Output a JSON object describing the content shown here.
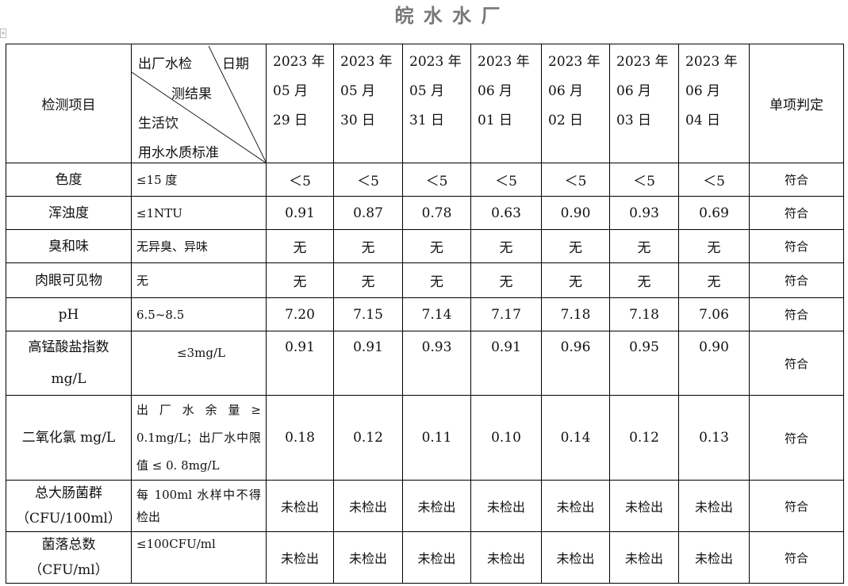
{
  "title": "皖 水 水 厂",
  "header": {
    "item_label": "检测项目",
    "diag_top_left": "出厂水检",
    "diag_top_right": "日期",
    "diag_mid": "测结果",
    "diag_bottom1": "生活饮",
    "diag_bottom2": "用水水质标准",
    "dates": [
      [
        "2023 年",
        "05 月",
        "29 日"
      ],
      [
        "2023 年",
        "05 月",
        "30 日"
      ],
      [
        "2023 年",
        "05 月",
        "31 日"
      ],
      [
        "2023 年",
        "06 月",
        "01 日"
      ],
      [
        "2023 年",
        "06 月",
        "02 日"
      ],
      [
        "2023 年",
        "06 月",
        "03 日"
      ],
      [
        "2023 年",
        "06 月",
        "04 日"
      ]
    ],
    "verdict_label": "单项判定"
  },
  "rows": [
    {
      "item": "色度",
      "standard": "≤15 度",
      "values": [
        "＜5",
        "＜5",
        "＜5",
        "＜5",
        "＜5",
        "＜5",
        "＜5"
      ],
      "verdict": "符合"
    },
    {
      "item": "浑浊度",
      "standard": "≤1NTU",
      "values": [
        "0.91",
        "0.87",
        "0.78",
        "0.63",
        "0.90",
        "0.93",
        "0.69"
      ],
      "verdict": "符合"
    },
    {
      "item": "臭和味",
      "standard": "无异臭、异味",
      "values": [
        "无",
        "无",
        "无",
        "无",
        "无",
        "无",
        "无"
      ],
      "verdict": "符合"
    },
    {
      "item": "肉眼可见物",
      "standard": "无",
      "values": [
        "无",
        "无",
        "无",
        "无",
        "无",
        "无",
        "无"
      ],
      "verdict": "符合"
    },
    {
      "item": "pH",
      "standard": "6.5~8.5",
      "values": [
        "7.20",
        "7.15",
        "7.14",
        "7.17",
        "7.18",
        "7.18",
        "7.06"
      ],
      "verdict": "符合"
    },
    {
      "item": "高锰酸盐指数",
      "item2": "mg/L",
      "standard": "≤3mg/L",
      "values": [
        "0.91",
        "0.91",
        "0.93",
        "0.91",
        "0.96",
        "0.95",
        "0.90"
      ],
      "verdict": "符合"
    },
    {
      "item": "二氧化氯 mg/L",
      "standard": "出 厂 水 余 量 ≥ 0.1mg/L；出厂水中限 值 ≤ 0. 8mg/L",
      "values": [
        "0.18",
        "0.12",
        "0.11",
        "0.10",
        "0.14",
        "0.12",
        "0.13"
      ],
      "verdict": "符合"
    },
    {
      "item": "总大肠菌群",
      "item2": "（CFU/100ml）",
      "standard": "每 100ml 水样中不得检出",
      "values": [
        "未检出",
        "未检出",
        "未检出",
        "未检出",
        "未检出",
        "未检出",
        "未检出"
      ],
      "verdict": "符合"
    },
    {
      "item": "菌落总数",
      "item2": "（CFU/ml）",
      "standard": "≤100CFU/ml",
      "values": [
        "未检出",
        "未检出",
        "未检出",
        "未检出",
        "未检出",
        "未检出",
        "未检出"
      ],
      "verdict": "符合"
    }
  ]
}
